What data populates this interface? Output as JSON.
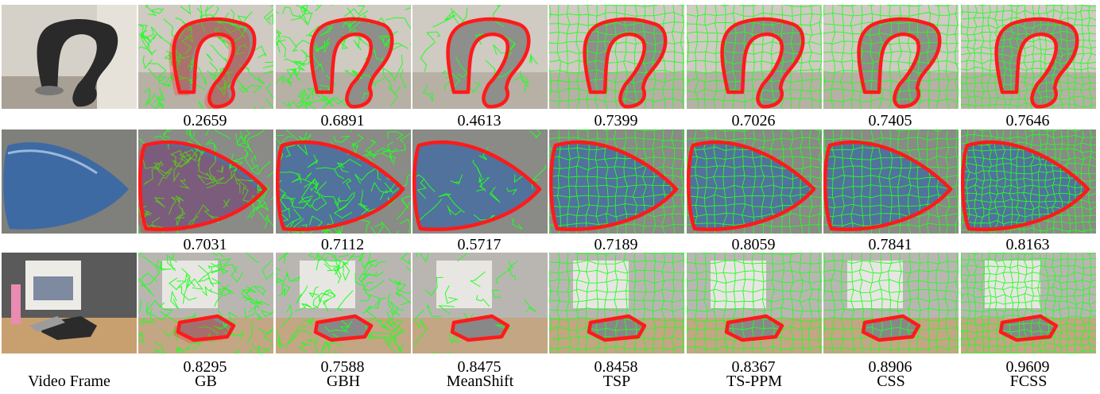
{
  "figure": {
    "columns": [
      "Video Frame",
      "GB",
      "GBH",
      "MeanShift",
      "TSP",
      "TS-PPM",
      "CSS",
      "FCSS"
    ],
    "rows": [
      {
        "scene": "chair-scene",
        "scores": [
          "0.2659",
          "0.6891",
          "0.4613",
          "0.7399",
          "0.7026",
          "0.7405",
          "0.7646"
        ]
      },
      {
        "scene": "car-scene",
        "scores": [
          "0.7031",
          "0.7112",
          "0.5717",
          "0.7189",
          "0.8059",
          "0.7841",
          "0.8163"
        ]
      },
      {
        "scene": "desk-scene",
        "scores": [
          "0.8295",
          "0.7588",
          "0.8475",
          "0.8458",
          "0.8367",
          "0.8906",
          "0.9609"
        ]
      }
    ],
    "colors": {
      "superpixel_boundary": "#22ff22",
      "object_boundary": "#ff1a1a",
      "chair": "#2a2a2a",
      "car": "#3d6aa3",
      "desk": "#c8a070"
    }
  }
}
